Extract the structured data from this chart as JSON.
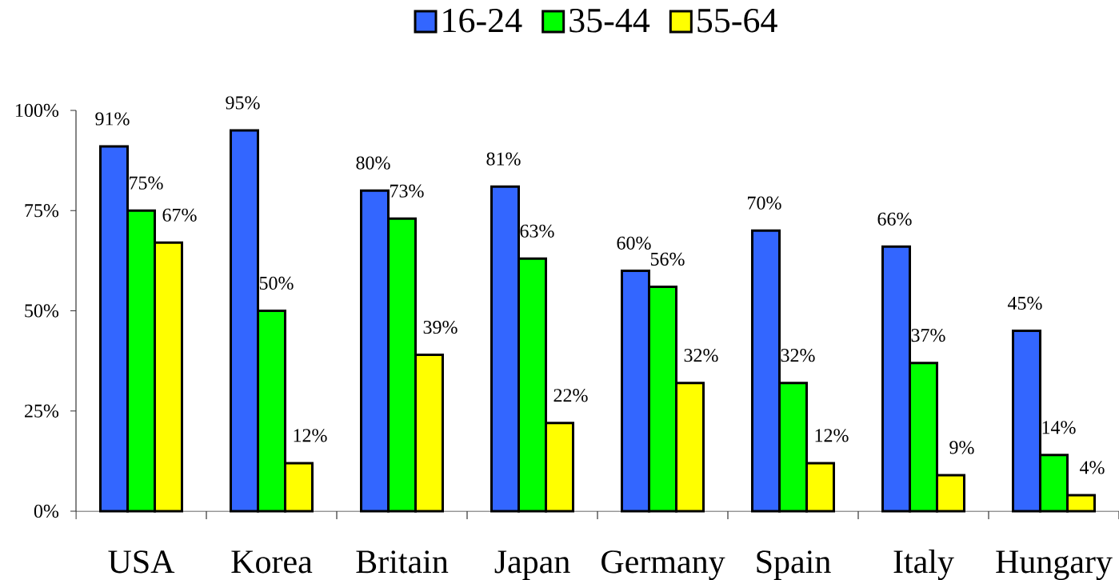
{
  "chart_data": {
    "type": "bar",
    "categories": [
      "USA",
      "Korea",
      "Britain",
      "Japan",
      "Germany",
      "Spain",
      "Italy",
      "Hungary"
    ],
    "series": [
      {
        "name": "16-24",
        "color": "#3366ff",
        "values": [
          91,
          95,
          80,
          81,
          60,
          70,
          66,
          45
        ],
        "value_labels": [
          "91%",
          "95%",
          "80%",
          "81%",
          "60%",
          "70%",
          "66%",
          "45%"
        ]
      },
      {
        "name": "35-44",
        "color": "#00ff00",
        "values": [
          75,
          50,
          73,
          63,
          56,
          32,
          37,
          14
        ],
        "value_labels": [
          "75%",
          "50%",
          "73%",
          "63%",
          "56%",
          "32%",
          "37%",
          "14%"
        ]
      },
      {
        "name": "55-64",
        "color": "#ffff00",
        "values": [
          67,
          12,
          39,
          22,
          32,
          12,
          9,
          4
        ],
        "value_labels": [
          "67%",
          "12%",
          "39%",
          "22%",
          "32%",
          "12%",
          "9%",
          "4%"
        ]
      }
    ],
    "ylim": [
      0,
      100
    ],
    "yticks": [
      {
        "value": 0,
        "label": "0%"
      },
      {
        "value": 25,
        "label": "25%"
      },
      {
        "value": 50,
        "label": "50%"
      },
      {
        "value": 75,
        "label": "75%"
      },
      {
        "value": 100,
        "label": "100%"
      }
    ],
    "legend": "top"
  }
}
